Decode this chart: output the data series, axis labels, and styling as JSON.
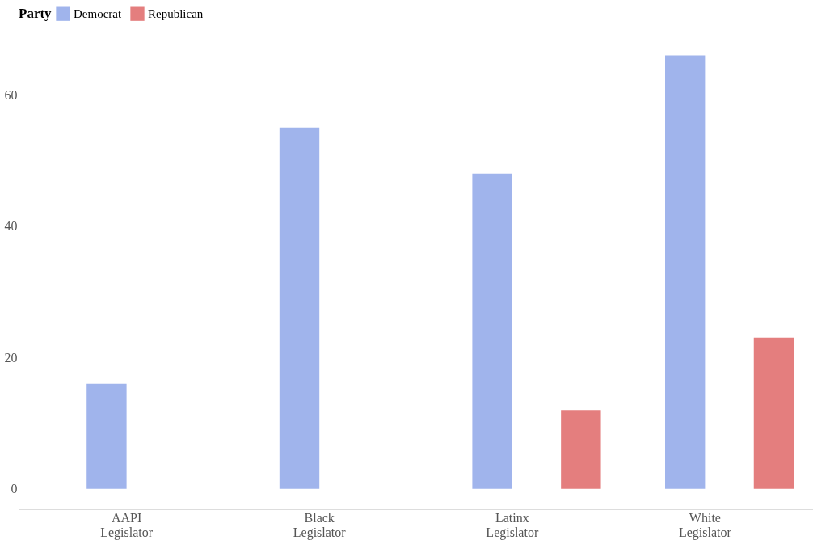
{
  "chart_data": {
    "type": "bar",
    "legend_title": "Party",
    "legend": "top",
    "categories": [
      "AAPI Legislator",
      "Black Legislator",
      "Latinx Legislator",
      "White Legislator"
    ],
    "series": [
      {
        "name": "Democrat",
        "color": "#a0b4ec",
        "values": [
          16,
          55,
          48,
          66
        ]
      },
      {
        "name": "Republican",
        "color": "#e47e7e",
        "values": [
          null,
          null,
          12,
          23
        ]
      }
    ],
    "ylim": [
      -3.1,
      69
    ],
    "yticks": [
      0,
      20,
      40,
      60
    ],
    "grid": false
  }
}
